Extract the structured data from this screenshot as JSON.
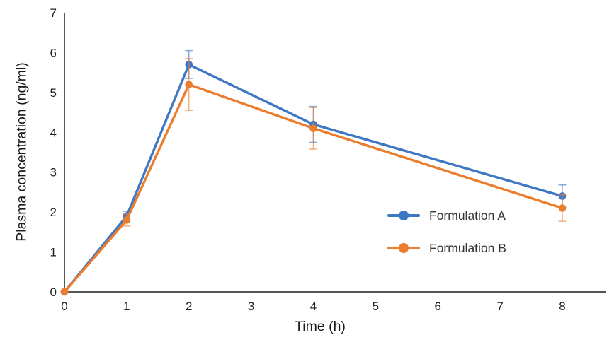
{
  "figure": {
    "background": "#ffffff"
  },
  "chart_data": {
    "type": "line",
    "title": "",
    "xlabel": "Time (h)",
    "ylabel": "Plasma concentration (ng/ml)",
    "x": [
      0,
      1,
      2,
      4,
      8
    ],
    "xticks": [
      "0",
      "1",
      "2",
      "3",
      "4",
      "5",
      "6",
      "7",
      "8"
    ],
    "xtick_values": [
      0,
      1,
      2,
      3,
      4,
      5,
      6,
      7,
      8
    ],
    "yticks": [
      "0",
      "1",
      "2",
      "3",
      "4",
      "5",
      "6",
      "7"
    ],
    "ytick_values": [
      0,
      1,
      2,
      3,
      4,
      5,
      6,
      7
    ],
    "xlim": [
      0,
      8.7
    ],
    "ylim": [
      0,
      7
    ],
    "grid": false,
    "legend_position": "inside right",
    "axis_color": "#3d3d3d",
    "tick_color": "#1f1f1f",
    "error_bars": true,
    "series": [
      {
        "name": "Formulation A",
        "color": "#3E77C3",
        "values": [
          0,
          1.9,
          5.7,
          4.2,
          2.4
        ],
        "errors": [
          0,
          0.12,
          0.35,
          0.45,
          0.28
        ]
      },
      {
        "name": "Formulation B",
        "color": "#EC7D2E",
        "values": [
          0,
          1.8,
          5.2,
          4.1,
          2.1
        ],
        "errors": [
          0,
          0.15,
          0.65,
          0.52,
          0.33
        ]
      }
    ]
  }
}
